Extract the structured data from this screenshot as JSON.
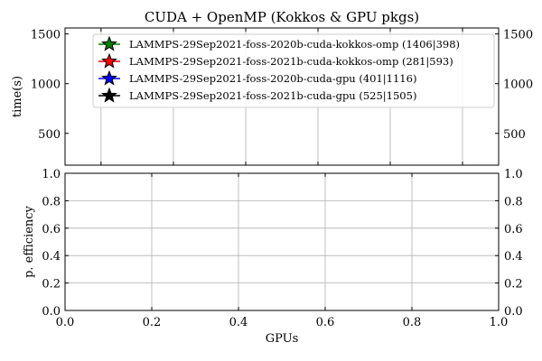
{
  "chart_data": [
    {
      "type": "line",
      "title": "CUDA + OpenMP (Kokkos & GPU pkgs)",
      "xlabel": "",
      "ylabel": "time(s)",
      "xlim": [
        0,
        1
      ],
      "ylim": [
        180,
        1560
      ],
      "y_ticks": [
        "500",
        "1000",
        "1500"
      ],
      "y_tick_values": [
        500,
        1000,
        1500
      ],
      "x_ticks": [],
      "grid": true,
      "legend_position": "top-right",
      "series": [
        {
          "name": "LAMMPS-29Sep2021-foss-2020b-cuda-kokkos-omp (1406|398)",
          "color": "#008000",
          "marker": "star",
          "x": [],
          "y": []
        },
        {
          "name": "LAMMPS-29Sep2021-foss-2021b-cuda-kokkos-omp (281|593)",
          "color": "#ff0000",
          "marker": "star",
          "x": [],
          "y": []
        },
        {
          "name": "LAMMPS-29Sep2021-foss-2020b-cuda-gpu (401|1116)",
          "color": "#0000ff",
          "marker": "star",
          "x": [],
          "y": []
        },
        {
          "name": "LAMMPS-29Sep2021-foss-2021b-cuda-gpu (525|1505)",
          "color": "#000000",
          "marker": "star",
          "x": [],
          "y": []
        }
      ]
    },
    {
      "type": "line",
      "title": "",
      "xlabel": "GPUs",
      "ylabel": "p. efficiency",
      "xlim": [
        0,
        1
      ],
      "ylim": [
        0,
        1
      ],
      "x_ticks": [
        "0.0",
        "0.2",
        "0.4",
        "0.6",
        "0.8",
        "1.0"
      ],
      "x_tick_values": [
        0,
        0.2,
        0.4,
        0.6,
        0.8,
        1.0
      ],
      "y_ticks": [
        "0.0",
        "0.2",
        "0.4",
        "0.6",
        "0.8",
        "1.0"
      ],
      "y_tick_values": [
        0,
        0.2,
        0.4,
        0.6,
        0.8,
        1.0
      ],
      "grid": true,
      "series": []
    }
  ]
}
